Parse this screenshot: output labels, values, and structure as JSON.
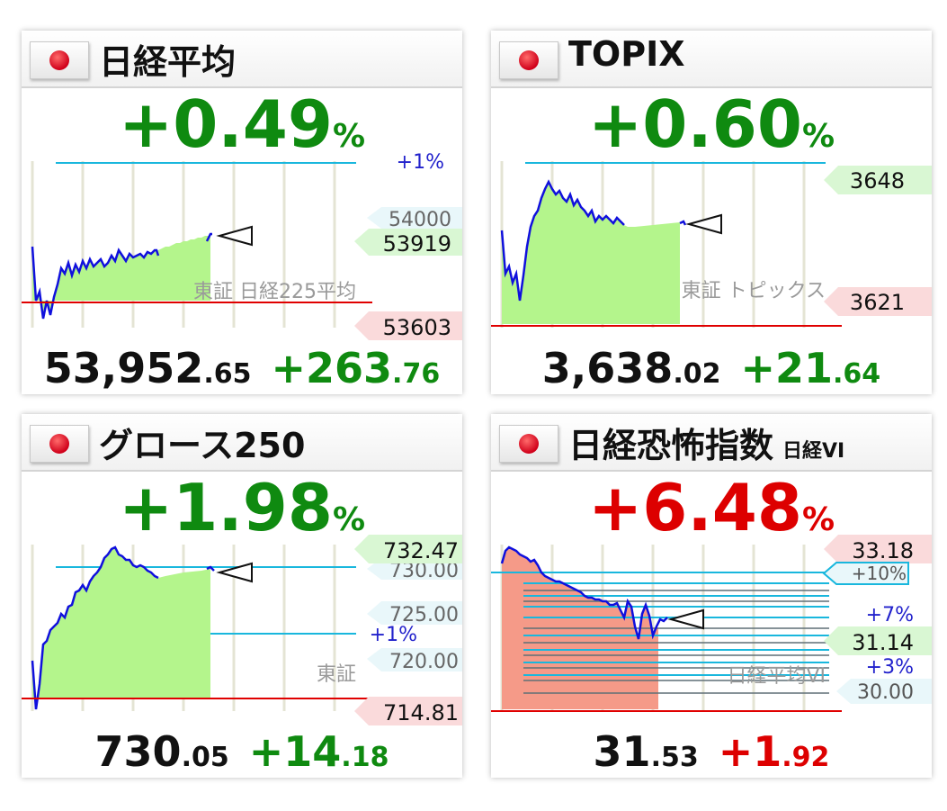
{
  "panels": [
    {
      "title": "日経平均",
      "subtitle": "",
      "pct": "+0.49",
      "pct_unit": "%",
      "direction": "up",
      "price_int": "53,952",
      "price_dec": ".65",
      "change_int": "+263",
      "change_dec": ".76",
      "source_label": "東証 日経225平均",
      "line_labels": [
        "+1%"
      ],
      "tags": [
        "54000",
        "53919",
        "53603"
      ]
    },
    {
      "title": "TOPIX",
      "subtitle": "",
      "pct": "+0.60",
      "pct_unit": "%",
      "direction": "up",
      "price_int": "3,638",
      "price_dec": ".02",
      "change_int": "+21",
      "change_dec": ".64",
      "source_label": "東証 トピックス",
      "line_labels": [],
      "tags": [
        "3648",
        "3621"
      ]
    },
    {
      "title": "グロース250",
      "subtitle": "",
      "pct": "+1.98",
      "pct_unit": "%",
      "direction": "up",
      "price_int": "730",
      "price_dec": ".05",
      "change_int": "+14",
      "change_dec": ".18",
      "source_label": "東証",
      "line_labels": [
        "+1%"
      ],
      "tags": [
        "732.47",
        "730.00",
        "725.00",
        "720.00",
        "714.81"
      ]
    },
    {
      "title": "日経恐怖指数",
      "subtitle": "日経VI",
      "pct": "+6.48",
      "pct_unit": "%",
      "direction": "up_bad",
      "price_int": "31",
      "price_dec": ".53",
      "change_int": "+1",
      "change_dec": ".92",
      "source_label": "日経平均VI",
      "line_labels": [
        "+10%",
        "+7%",
        "+3%"
      ],
      "tags": [
        "33.18",
        "31.14",
        "30.00"
      ]
    }
  ],
  "colors": {
    "up": "#0f8a10",
    "down_bad": "#dd0000",
    "price_line": "#1010dd",
    "fill_up": "#b4f58c",
    "fill_vi": "#f59a88",
    "pct_line": "#19b7dd",
    "prev_close_line": "#e00000",
    "tag_green": "#d9f7d3",
    "tag_red": "#fadadb",
    "tag_blue": "#e9f7fa"
  },
  "chart_data": [
    {
      "type": "line",
      "series": [
        {
          "values": [
            53780,
            53620,
            53560,
            53610,
            53580,
            53670,
            53700,
            53720,
            53690,
            53740,
            53760,
            53730,
            53750,
            53780,
            53760,
            53790,
            53770,
            53760,
            53800,
            53780,
            53790,
            53810,
            53790,
            53820,
            53800,
            53790,
            53810,
            53830,
            53840,
            53820,
            53840,
            53860,
            53870,
            53850,
            53880,
            53890,
            53900,
            53910,
            53930,
            53952
          ]
        }
      ],
      "ylim": [
        53560,
        54080
      ],
      "reference_lines": {
        "prev_close": 53689,
        "plus_1pct": 54226
      }
    },
    {
      "type": "line",
      "series": [
        {
          "values": [
            3628,
            3622,
            3616,
            3610,
            3605,
            3615,
            3625,
            3632,
            3638,
            3643,
            3646,
            3648,
            3647,
            3645,
            3646,
            3644,
            3642,
            3643,
            3641,
            3640,
            3639,
            3638,
            3639,
            3638,
            3637,
            3638,
            3637,
            3638,
            3638,
            3638,
            3638,
            3638,
            3638,
            3638,
            3638,
            3638
          ]
        }
      ],
      "ylim": [
        3604,
        3652
      ],
      "reference_lines": {
        "prev_close": 3616.38
      }
    },
    {
      "type": "line",
      "series": [
        {
          "values": [
            716.5,
            715.2,
            718.0,
            720.5,
            722.0,
            723.5,
            724.8,
            725.6,
            726.5,
            727.5,
            728.5,
            729.0,
            729.5,
            730.0,
            730.5,
            731.2,
            731.8,
            732.2,
            732.47,
            732.2,
            731.5,
            731.0,
            730.5,
            730.2,
            730.0,
            730.0,
            730.0,
            730.0,
            730.0,
            730.05
          ]
        }
      ],
      "ylim": [
        714.5,
        733.5
      ],
      "reference_lines": {
        "prev_close": 715.87,
        "plus_1pct": 723.03
      }
    },
    {
      "type": "line",
      "series": [
        {
          "values": [
            33.0,
            33.18,
            33.1,
            32.95,
            32.8,
            32.7,
            32.6,
            32.5,
            32.4,
            32.3,
            32.25,
            32.2,
            32.1,
            32.0,
            31.9,
            31.8,
            31.7,
            31.6,
            31.5,
            31.4,
            31.2,
            31.1,
            31.4,
            31.0,
            31.3,
            31.2,
            31.4,
            31.5,
            31.53
          ]
        }
      ],
      "ylim": [
        30.0,
        33.3
      ],
      "reference_lines": {
        "prev_close": 29.61,
        "plus_3pct": 30.5,
        "plus_7pct": 31.68,
        "plus_10pct": 32.57
      }
    }
  ]
}
